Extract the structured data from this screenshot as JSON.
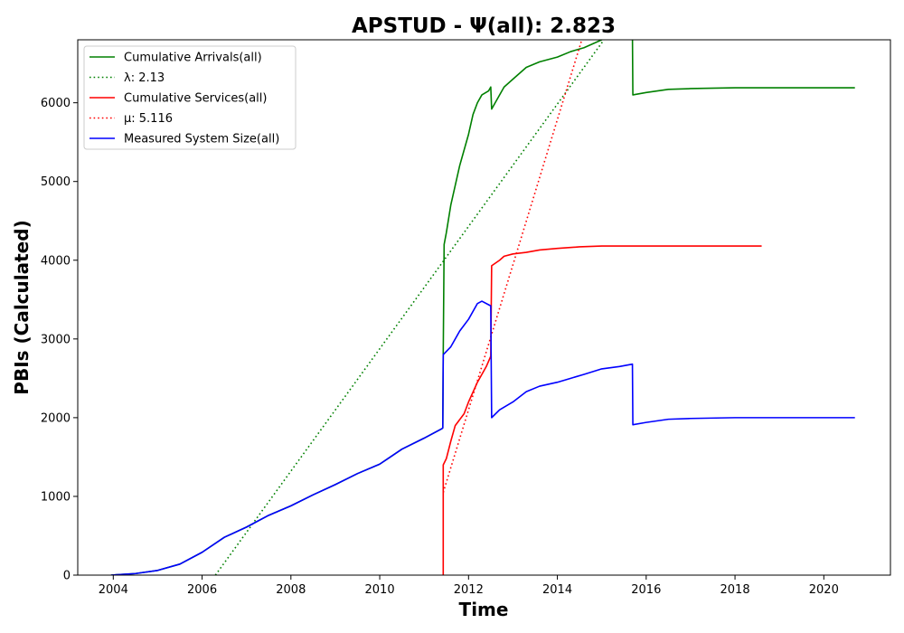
{
  "chart_data": {
    "type": "line",
    "title": "APSTUD -  Ψ(all): 2.823",
    "xlabel": "Time",
    "ylabel": "PBIs (Calculated)",
    "xlim": [
      2003.2,
      2021.5
    ],
    "ylim": [
      0,
      6800
    ],
    "x_ticks": [
      2004,
      2006,
      2008,
      2010,
      2012,
      2014,
      2016,
      2018,
      2020
    ],
    "y_ticks": [
      0,
      1000,
      2000,
      3000,
      4000,
      5000,
      6000
    ],
    "x_tick_labels": [
      "2004",
      "2006",
      "2008",
      "2010",
      "2012",
      "2014",
      "2016",
      "2018",
      "2020"
    ],
    "y_tick_labels": [
      "0",
      "1000",
      "2000",
      "3000",
      "4000",
      "5000",
      "6000"
    ],
    "legend_position": "top-left",
    "grid": false,
    "series": [
      {
        "name": "Cumulative Arrivals(all)",
        "color": "#008000",
        "style": "solid",
        "points": [
          [
            2003.95,
            0
          ],
          [
            2004.5,
            20
          ],
          [
            2005.0,
            60
          ],
          [
            2005.5,
            140
          ],
          [
            2006.0,
            290
          ],
          [
            2006.5,
            480
          ],
          [
            2007.0,
            610
          ],
          [
            2007.5,
            760
          ],
          [
            2008.0,
            880
          ],
          [
            2008.5,
            1020
          ],
          [
            2009.0,
            1150
          ],
          [
            2009.5,
            1290
          ],
          [
            2010.0,
            1410
          ],
          [
            2010.5,
            1600
          ],
          [
            2011.0,
            1740
          ],
          [
            2011.4,
            1860
          ],
          [
            2011.42,
            1870
          ],
          [
            2011.43,
            2800
          ],
          [
            2011.45,
            4200
          ],
          [
            2011.5,
            4350
          ],
          [
            2011.6,
            4700
          ],
          [
            2011.7,
            4950
          ],
          [
            2011.8,
            5200
          ],
          [
            2011.9,
            5400
          ],
          [
            2012.0,
            5600
          ],
          [
            2012.1,
            5850
          ],
          [
            2012.2,
            6000
          ],
          [
            2012.3,
            6100
          ],
          [
            2012.45,
            6150
          ],
          [
            2012.5,
            6200
          ],
          [
            2012.52,
            5920
          ],
          [
            2012.6,
            6000
          ],
          [
            2012.8,
            6200
          ],
          [
            2013.0,
            6300
          ],
          [
            2013.3,
            6450
          ],
          [
            2013.6,
            6520
          ],
          [
            2014.0,
            6580
          ],
          [
            2014.3,
            6650
          ],
          [
            2014.6,
            6700
          ],
          [
            2015.0,
            6800
          ],
          [
            2015.2,
            6870
          ],
          [
            2015.69,
            6880
          ],
          [
            2015.7,
            6100
          ],
          [
            2016.0,
            6130
          ],
          [
            2016.5,
            6170
          ],
          [
            2017.0,
            6180
          ],
          [
            2018.0,
            6190
          ],
          [
            2019.0,
            6190
          ],
          [
            2020.0,
            6190
          ],
          [
            2020.7,
            6190
          ]
        ]
      },
      {
        "name": "λ: 2.13",
        "color": "#008000",
        "style": "dotted",
        "points": [
          [
            2006.3,
            0
          ],
          [
            2015.05,
            6800
          ]
        ]
      },
      {
        "name": "Cumulative Services(all)",
        "color": "#ff0000",
        "style": "solid",
        "points": [
          [
            2011.43,
            0
          ],
          [
            2011.43,
            1400
          ],
          [
            2011.5,
            1480
          ],
          [
            2011.6,
            1700
          ],
          [
            2011.7,
            1900
          ],
          [
            2011.9,
            2050
          ],
          [
            2012.0,
            2200
          ],
          [
            2012.2,
            2450
          ],
          [
            2012.4,
            2650
          ],
          [
            2012.5,
            2780
          ],
          [
            2012.52,
            3930
          ],
          [
            2012.7,
            4000
          ],
          [
            2012.8,
            4050
          ],
          [
            2013.0,
            4080
          ],
          [
            2013.3,
            4100
          ],
          [
            2013.6,
            4130
          ],
          [
            2014.0,
            4150
          ],
          [
            2014.5,
            4170
          ],
          [
            2015.0,
            4180
          ],
          [
            2016.0,
            4180
          ],
          [
            2017.0,
            4180
          ],
          [
            2018.0,
            4180
          ],
          [
            2018.6,
            4180
          ]
        ]
      },
      {
        "name": "μ: 5.116",
        "color": "#ff0000",
        "style": "dotted",
        "points": [
          [
            2011.43,
            1050
          ],
          [
            2014.55,
            6800
          ]
        ]
      },
      {
        "name": "Measured System Size(all)",
        "color": "#0000ff",
        "style": "solid",
        "points": [
          [
            2003.95,
            0
          ],
          [
            2004.5,
            20
          ],
          [
            2005.0,
            60
          ],
          [
            2005.5,
            140
          ],
          [
            2006.0,
            290
          ],
          [
            2006.5,
            480
          ],
          [
            2007.0,
            610
          ],
          [
            2007.5,
            760
          ],
          [
            2008.0,
            880
          ],
          [
            2008.5,
            1020
          ],
          [
            2009.0,
            1150
          ],
          [
            2009.5,
            1290
          ],
          [
            2010.0,
            1410
          ],
          [
            2010.5,
            1600
          ],
          [
            2011.0,
            1740
          ],
          [
            2011.4,
            1860
          ],
          [
            2011.42,
            1870
          ],
          [
            2011.43,
            2800
          ],
          [
            2011.6,
            2900
          ],
          [
            2011.8,
            3100
          ],
          [
            2012.0,
            3250
          ],
          [
            2012.2,
            3450
          ],
          [
            2012.3,
            3480
          ],
          [
            2012.5,
            3420
          ],
          [
            2012.52,
            2000
          ],
          [
            2012.7,
            2100
          ],
          [
            2013.0,
            2200
          ],
          [
            2013.3,
            2330
          ],
          [
            2013.6,
            2400
          ],
          [
            2014.0,
            2450
          ],
          [
            2014.3,
            2500
          ],
          [
            2014.6,
            2550
          ],
          [
            2015.0,
            2620
          ],
          [
            2015.4,
            2650
          ],
          [
            2015.69,
            2680
          ],
          [
            2015.7,
            1910
          ],
          [
            2016.0,
            1940
          ],
          [
            2016.5,
            1980
          ],
          [
            2017.0,
            1990
          ],
          [
            2018.0,
            2000
          ],
          [
            2019.0,
            2000
          ],
          [
            2020.0,
            2000
          ],
          [
            2020.7,
            2000
          ]
        ]
      }
    ]
  }
}
